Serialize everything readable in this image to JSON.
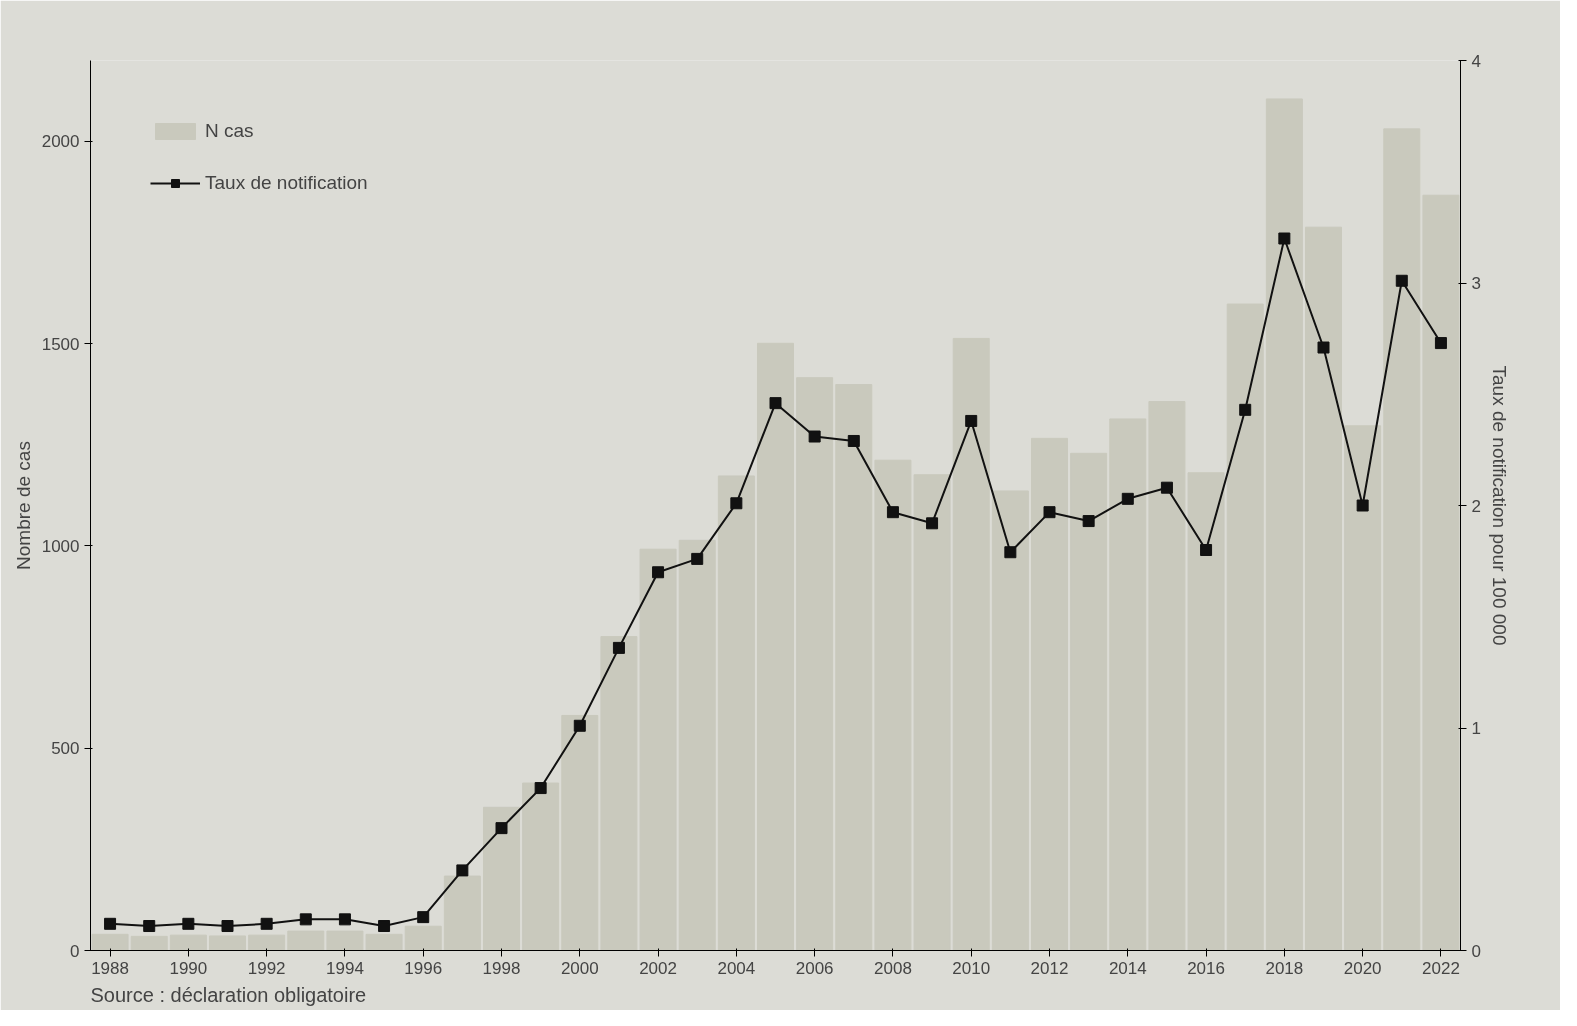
{
  "chart_data": {
    "type": "bar",
    "xlabel": null,
    "ylabel": "Nombre de cas",
    "y2label": "Taux de notification pour 100 000",
    "x": [
      1988,
      1989,
      1990,
      1991,
      1992,
      1993,
      1994,
      1995,
      1996,
      1997,
      1998,
      1999,
      2000,
      2001,
      2002,
      2003,
      2004,
      2005,
      2006,
      2007,
      2008,
      2009,
      2010,
      2011,
      2012,
      2013,
      2014,
      2015,
      2016,
      2017,
      2018,
      2019,
      2020,
      2021,
      2022
    ],
    "series": [
      {
        "name": "N cas",
        "color": "#c9c9bd",
        "values": [
          40,
          35,
          38,
          36,
          38,
          48,
          48,
          40,
          60,
          184,
          354,
          414,
          581,
          776,
          992,
          1014,
          1173,
          1501,
          1416,
          1399,
          1212,
          1176,
          1513,
          1136,
          1266,
          1229,
          1314,
          1357,
          1181,
          1598,
          2105,
          1788,
          1297,
          2031,
          1867
        ]
      },
      {
        "name": "Taux de notification",
        "type": "line",
        "axis": "y2",
        "color": "#111111",
        "marker": "square",
        "line_style": "solid",
        "values": [
          0.12,
          0.11,
          0.12,
          0.11,
          0.12,
          0.14,
          0.14,
          0.11,
          0.15,
          0.36,
          0.55,
          0.73,
          1.01,
          1.36,
          1.7,
          1.76,
          2.01,
          2.46,
          2.31,
          2.29,
          1.97,
          1.92,
          2.38,
          1.79,
          1.97,
          1.93,
          2.03,
          2.08,
          1.8,
          2.43,
          3.2,
          2.71,
          2.0,
          3.01,
          2.73
        ]
      }
    ],
    "xlim": [
      1987.5,
      2022.5
    ],
    "xticks": [
      1988,
      1990,
      1992,
      1994,
      1996,
      1998,
      2000,
      2002,
      2004,
      2006,
      2008,
      2010,
      2012,
      2014,
      2016,
      2018,
      2020,
      2022
    ],
    "ylim": [
      0,
      2200
    ],
    "yticks": [
      0,
      500,
      1000,
      1500,
      2000
    ],
    "y2lim": [
      0,
      4
    ],
    "y2ticks": [
      0,
      1,
      2,
      3,
      4
    ],
    "grid": false,
    "legend": "top left",
    "annotations": [
      "Source : déclaration obligatoire"
    ]
  }
}
